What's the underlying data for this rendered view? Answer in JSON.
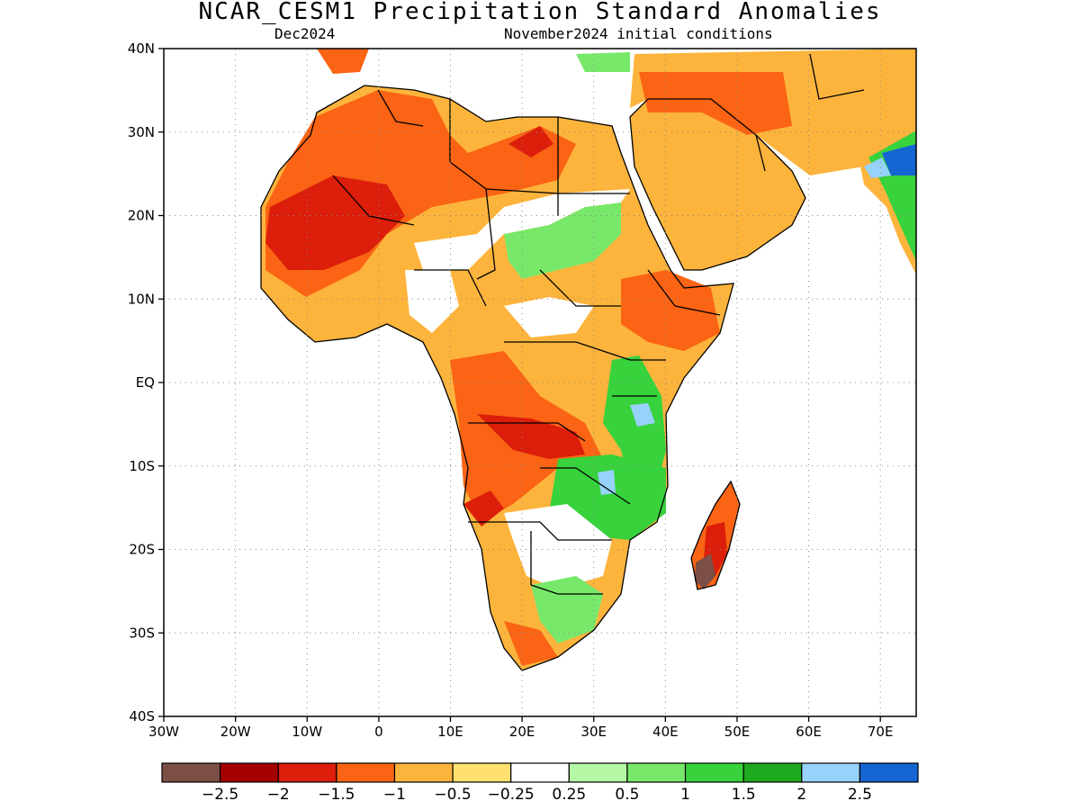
{
  "title": "NCAR_CESM1 Precipitation Standard Anomalies",
  "subtitle_left": "Dec2024",
  "subtitle_right": "November2024 initial conditions",
  "map": {
    "region": "Africa",
    "lon_range": [
      -30,
      75
    ],
    "lat_range": [
      -40,
      40
    ],
    "lat_ticks": [
      {
        "lat": 40,
        "label": "40N"
      },
      {
        "lat": 30,
        "label": "30N"
      },
      {
        "lat": 20,
        "label": "20N"
      },
      {
        "lat": 10,
        "label": "10N"
      },
      {
        "lat": 0,
        "label": "EQ"
      },
      {
        "lat": -10,
        "label": "10S"
      },
      {
        "lat": -20,
        "label": "20S"
      },
      {
        "lat": -30,
        "label": "30S"
      },
      {
        "lat": -40,
        "label": "40S"
      }
    ],
    "lon_ticks": [
      {
        "lon": -30,
        "label": "30W"
      },
      {
        "lon": -20,
        "label": "20W"
      },
      {
        "lon": -10,
        "label": "10W"
      },
      {
        "lon": 0,
        "label": "0"
      },
      {
        "lon": 10,
        "label": "10E"
      },
      {
        "lon": 20,
        "label": "20E"
      },
      {
        "lon": 30,
        "label": "30E"
      },
      {
        "lon": 40,
        "label": "40E"
      },
      {
        "lon": 50,
        "label": "50E"
      },
      {
        "lon": 60,
        "label": "60E"
      },
      {
        "lon": 70,
        "label": "70E"
      }
    ],
    "gridlines": "dotted"
  },
  "colorbar": {
    "colors": [
      "#7b4f45",
      "#a50000",
      "#dc1e0a",
      "#fa6414",
      "#fdb43c",
      "#ffe070",
      "#ffffff",
      "#b4f7a4",
      "#78e86a",
      "#37d23c",
      "#1eaa1e",
      "#96d2fa",
      "#1464d2"
    ],
    "labels": [
      "−2.5",
      "−2",
      "−1.5",
      "−1",
      "−0.5",
      "−0.25",
      "0.25",
      "0.5",
      "1",
      "1.5",
      "2",
      "2.5"
    ]
  },
  "anomaly_regions": [
    {
      "color": "#fdb43c",
      "name": "broad below-normal, most of the continent"
    },
    {
      "color": "#fa6414",
      "name": "North Africa / Sahel"
    },
    {
      "color": "#dc1e0a",
      "name": "West Sahara"
    },
    {
      "color": "#dc1e0a",
      "name": "Libya/Egypt border"
    },
    {
      "color": "#78e86a",
      "name": "Sudan / Chad"
    },
    {
      "color": "#37d23c",
      "name": "East Africa (Kenya/Tanzania)"
    },
    {
      "color": "#96d2fa",
      "name": "Lake Victoria area"
    },
    {
      "color": "#37d23c",
      "name": "Malawi / Zambia"
    },
    {
      "color": "#96d2fa",
      "name": "Lake Malawi"
    },
    {
      "color": "#78e86a",
      "name": "South Africa east"
    },
    {
      "color": "#dc1e0a",
      "name": "Madagascar"
    },
    {
      "color": "#7b4f45",
      "name": "Madagascar south"
    },
    {
      "color": "#37d23c",
      "name": "India west coast"
    },
    {
      "color": "#1464d2",
      "name": "India northwest"
    }
  ]
}
